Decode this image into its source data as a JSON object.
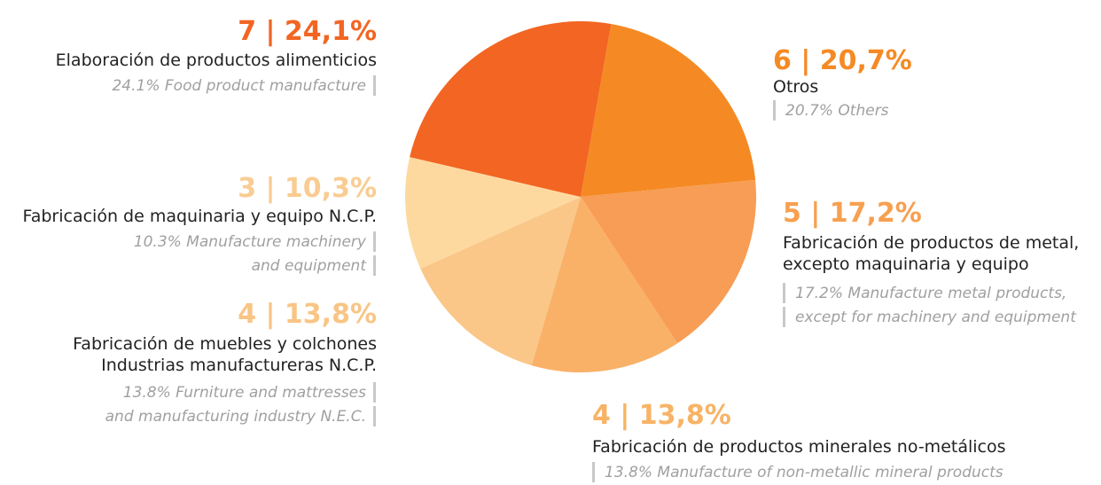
{
  "chart_data": {
    "type": "pie",
    "categories": [
      [
        "Otros"
      ],
      [
        "Fabricación de productos de metal,",
        "excepto maquinaria y equipo"
      ],
      [
        "Fabricación de productos minerales no-metálicos"
      ],
      [
        "Fabricación de muebles y colchones",
        "Industrias manufactureras N.C.P."
      ],
      [
        "Fabricación de maquinaria y equipo N.C.P."
      ],
      [
        "Elaboración de productos alimenticios"
      ]
    ],
    "descriptions": [
      [
        "20.7% Others"
      ],
      [
        "17.2% Manufacture metal products,",
        "except for machinery and equipment"
      ],
      [
        "13.8% Manufacture of non-metallic mineral products"
      ],
      [
        "13.8% Furniture and mattresses",
        "and manufacturing industry N.E.C."
      ],
      [
        "10.3% Manufacture machinery",
        "and equipment"
      ],
      [
        "24.1% Food product manufacture"
      ]
    ],
    "values": [
      6,
      5,
      4,
      4,
      3,
      7
    ],
    "value_labels": [
      "6 | 20,7%",
      "5 | 17,2%",
      "4 | 13,8%",
      "4 | 13,8%",
      "3 | 10,3%",
      "7 | 24,1%"
    ],
    "colors": [
      "#f58a24",
      "#f79d55",
      "#f9b168",
      "#fac788",
      "#fdd9a0",
      "#f26522"
    ],
    "label_colors": [
      "#f58a24",
      "#f7a050",
      "#f8b366",
      "#f9c585",
      "#f9cc92",
      "#f26522"
    ]
  }
}
